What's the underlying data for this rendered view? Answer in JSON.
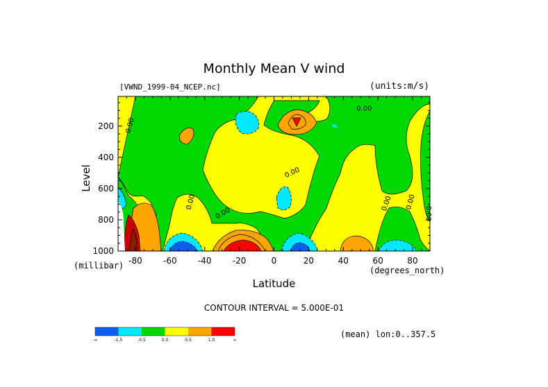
{
  "chart_data": {
    "type": "heatmap",
    "title": "Monthly Mean V wind",
    "dataset": "[VWND_1999-04_NCEP.nc]",
    "units_label": "(units:m/s)",
    "xlabel": "Latitude",
    "x_units": "(degrees_north)",
    "ylabel": "Level",
    "y_units": "(millibar)",
    "xlim": [
      -90,
      90
    ],
    "ylim": [
      1000,
      10
    ],
    "y_reversed": true,
    "x_ticks": [
      -80,
      -60,
      -40,
      -20,
      0,
      20,
      40,
      60,
      80
    ],
    "x_tick_labels": [
      "-80",
      "-60",
      "-40",
      "-20",
      "0",
      "20",
      "40",
      "60",
      "80"
    ],
    "y_ticks": [
      200,
      400,
      600,
      800,
      1000
    ],
    "y_tick_labels": [
      "200",
      "400",
      "600",
      "800",
      "1000"
    ],
    "contour_interval_label": "CONTOUR INTERVAL = 5.000E-01",
    "contour_labels": [
      "0.00",
      "0.00",
      "0.00",
      "0.00",
      "0.00",
      "0.00",
      "0.00",
      "0.00"
    ],
    "legend": {
      "placement": "bottom-left",
      "bins": [
        {
          "label": "-∞",
          "color": "#0a5ff0"
        },
        {
          "label": "-1.5",
          "color": "#00e8ff"
        },
        {
          "label": "-0.5",
          "color": "#00d800"
        },
        {
          "label": "0.0",
          "color": "#ffff00"
        },
        {
          "label": "0.5",
          "color": "#ffa500"
        },
        {
          "label": "1.0",
          "color": "#ff0000"
        }
      ],
      "tick_labels": [
        "-∞",
        "-1.5",
        "-0.5",
        "0.0",
        "0.5",
        "1.0",
        "∞"
      ]
    },
    "note": "(mean) lon:0..357.5",
    "regions": [
      {
        "value_band": "0.0 to 0.5",
        "fill": "#ffff00",
        "lat_range": [
          -90,
          90
        ],
        "level_range": [
          10,
          1000
        ]
      },
      {
        "value_band": "-0.5 to 0.0",
        "fill": "#00d800",
        "desc": "broad negative zones"
      },
      {
        "value_band": "-1.5 to -0.5",
        "fill": "#00e8ff",
        "centers": [
          [
            -10,
            170
          ],
          [
            8,
            640
          ],
          [
            63,
            990
          ],
          [
            15,
            990
          ],
          [
            -60,
            990
          ]
        ]
      },
      {
        "value_band": "< -1.5",
        "fill": "#0a5ff0",
        "centers": [
          [
            -57,
            995
          ],
          [
            15,
            995
          ]
        ]
      },
      {
        "value_band": "0.5 to 1.0",
        "fill": "#ffa500",
        "centers": [
          [
            -52,
            250
          ],
          [
            -25,
            980
          ],
          [
            47,
            990
          ],
          [
            -82,
            860
          ]
        ]
      },
      {
        "value_band": "> 1.0",
        "fill": "#ff0000",
        "centers": [
          [
            13,
            150
          ],
          [
            -20,
            995
          ],
          [
            -85,
            900
          ]
        ]
      }
    ],
    "colors": {
      "frame": "#000000",
      "background": "#ffffff"
    }
  }
}
